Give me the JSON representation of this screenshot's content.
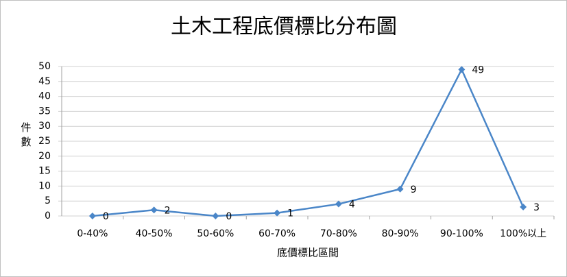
{
  "chart_data": {
    "type": "line",
    "title": "土木工程底價標比分布圖",
    "x_label": "底價標比區間",
    "y_label": "件數",
    "categories": [
      "0-40%",
      "40-50%",
      "50-60%",
      "60-70%",
      "70-80%",
      "80-90%",
      "90-100%",
      "100%以上"
    ],
    "values": [
      0,
      2,
      0,
      1,
      4,
      9,
      49,
      3
    ],
    "color": "#4a86c8",
    "ylim": [
      0,
      50
    ],
    "yticks": [
      0,
      5,
      10,
      15,
      20,
      25,
      30,
      35,
      40,
      45,
      50
    ],
    "grid": true
  }
}
